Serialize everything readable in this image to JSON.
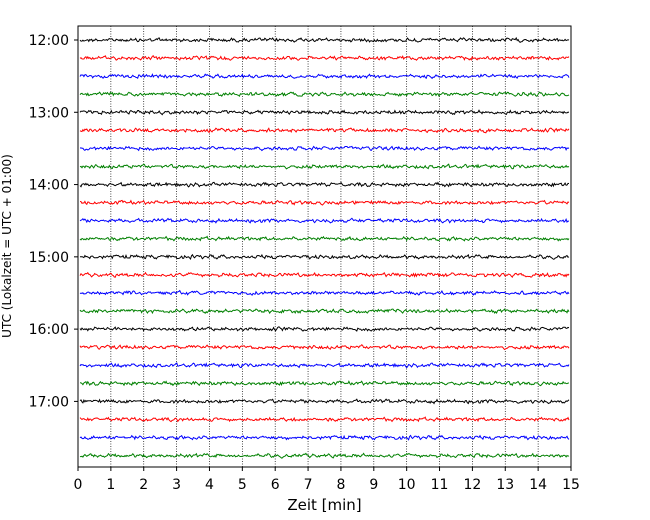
{
  "chart_data": {
    "type": "line",
    "title": "",
    "xlabel": "Zeit  [min]",
    "ylabel": "UTC (Lokalzeit = UTC + 01:00)",
    "xlim": [
      0,
      15
    ],
    "x_ticks": [
      "0",
      "1",
      "2",
      "3",
      "4",
      "5",
      "6",
      "7",
      "8",
      "9",
      "10",
      "11",
      "12",
      "13",
      "14",
      "15"
    ],
    "y_ticks": [
      "12:00",
      "13:00",
      "14:00",
      "15:00",
      "16:00",
      "17:00"
    ],
    "grid": "vertical-dotted",
    "trace_interval_minutes": 15,
    "trace_start": "12:00",
    "trace_colors": [
      "#000000",
      "#ff0000",
      "#0000ff",
      "#008000"
    ],
    "series": [
      {
        "start": "12:00",
        "color": "#000000"
      },
      {
        "start": "12:15",
        "color": "#ff0000"
      },
      {
        "start": "12:30",
        "color": "#0000ff"
      },
      {
        "start": "12:45",
        "color": "#008000"
      },
      {
        "start": "13:00",
        "color": "#000000"
      },
      {
        "start": "13:15",
        "color": "#ff0000"
      },
      {
        "start": "13:30",
        "color": "#0000ff"
      },
      {
        "start": "13:45",
        "color": "#008000"
      },
      {
        "start": "14:00",
        "color": "#000000"
      },
      {
        "start": "14:15",
        "color": "#ff0000"
      },
      {
        "start": "14:30",
        "color": "#0000ff"
      },
      {
        "start": "14:45",
        "color": "#008000"
      },
      {
        "start": "15:00",
        "color": "#000000"
      },
      {
        "start": "15:15",
        "color": "#ff0000"
      },
      {
        "start": "15:30",
        "color": "#0000ff"
      },
      {
        "start": "15:45",
        "color": "#008000"
      },
      {
        "start": "16:00",
        "color": "#000000"
      },
      {
        "start": "16:15",
        "color": "#ff0000"
      },
      {
        "start": "16:30",
        "color": "#0000ff"
      },
      {
        "start": "16:45",
        "color": "#008000"
      },
      {
        "start": "17:00",
        "color": "#000000"
      },
      {
        "start": "17:15",
        "color": "#ff0000"
      },
      {
        "start": "17:30",
        "color": "#0000ff"
      },
      {
        "start": "17:45",
        "color": "#008000"
      }
    ]
  }
}
